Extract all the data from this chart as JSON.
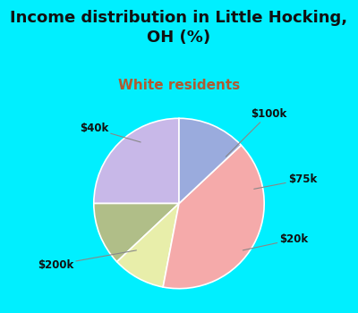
{
  "title": "Income distribution in Little Hocking,\nOH (%)",
  "subtitle": "White residents",
  "title_fontsize": 13,
  "subtitle_fontsize": 11,
  "title_color": "#111111",
  "subtitle_color": "#b05a2f",
  "labels": [
    "$100k",
    "$75k",
    "$20k",
    "$200k",
    "$40k"
  ],
  "sizes": [
    25,
    12,
    10,
    40,
    13
  ],
  "colors": [
    "#c8b8e8",
    "#b0be88",
    "#e8eeaa",
    "#f5aaaa",
    "#9aabdd"
  ],
  "label_color": "#111111",
  "label_fontsize": 8.5,
  "bg_cyan": "#00efff",
  "chart_bg": "#ddf5e8",
  "startangle": 90,
  "figsize": [
    4.0,
    3.5
  ],
  "dpi": 100,
  "wedge_linewidth": 1.2,
  "wedge_edgecolor": "#ffffff"
}
